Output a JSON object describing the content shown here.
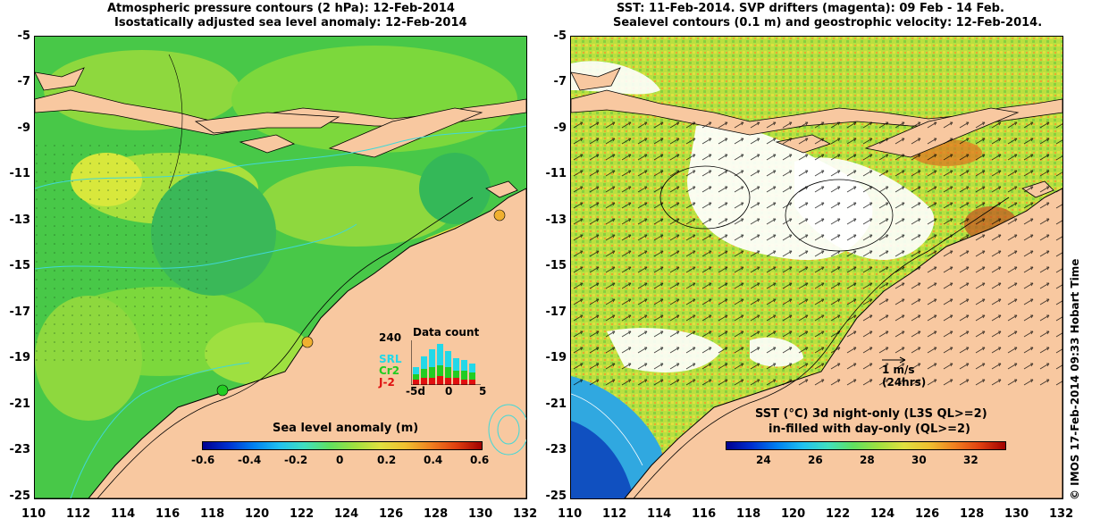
{
  "left_panel": {
    "title_line1": "Atmospheric pressure contours (2 hPa): 12-Feb-2014",
    "title_line2": "Isostatically adjusted sea level anomaly: 12-Feb-2014",
    "colorbar": {
      "label": "Sea level anomaly (m)",
      "ticks": [
        "-0.6",
        "-0.4",
        "-0.2",
        "0",
        "0.2",
        "0.4",
        "0.6"
      ]
    },
    "data_count": {
      "title": "Data count",
      "ymax": "240",
      "series": [
        "SRL",
        "Cr2",
        "J-2"
      ],
      "series_colors": [
        "#22d8e8",
        "#22cc22",
        "#e01010"
      ],
      "x_ticks": [
        "-5d",
        "0",
        "5"
      ]
    }
  },
  "right_panel": {
    "title_line1": "SST: 11-Feb-2014. SVP drifters (magenta): 09 Feb - 14 Feb.",
    "title_line2": "Sealevel contours (0.1 m) and geostrophic velocity: 12-Feb-2014.",
    "scale_arrow_label1": "1 m/s",
    "scale_arrow_label2": "(24hrs)",
    "colorbar": {
      "label_line1": "SST (°C) 3d night-only (L3S QL>=2)",
      "label_line2": "in-filled with day-only (QL>=2)",
      "ticks": [
        "24",
        "26",
        "28",
        "30",
        "32"
      ]
    }
  },
  "axes": {
    "y_ticks": [
      "-5",
      "-7",
      "-9",
      "-11",
      "-13",
      "-15",
      "-17",
      "-19",
      "-21",
      "-23",
      "-25"
    ],
    "x_ticks": [
      "110",
      "112",
      "114",
      "116",
      "118",
      "120",
      "122",
      "124",
      "126",
      "128",
      "130",
      "132"
    ]
  },
  "credit": "© IMOS 17-Feb-2014 09:33 Hobart Time",
  "colors": {
    "land": "#f8c8a0",
    "ocean_green": "#3cc83c",
    "ocean_light": "#9ee040",
    "contour": "#40d8d8"
  }
}
